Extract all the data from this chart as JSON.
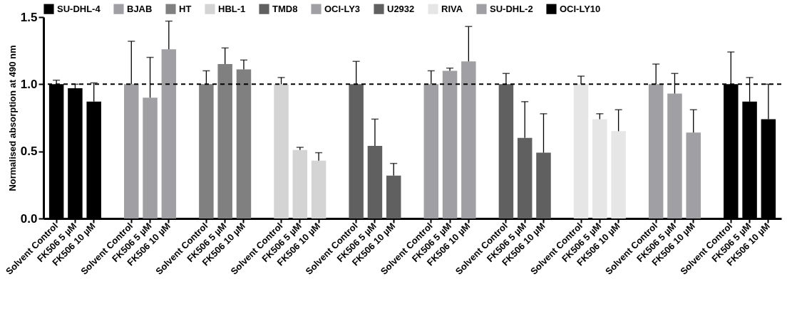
{
  "chart_data": {
    "type": "bar",
    "ylabel": "Normalised absorption at 490 nm",
    "categories": [
      "Solvent Control",
      "FK506 5 µM",
      "FK506 10 µM",
      "Solvent Control",
      "FK506 5 µM",
      "FK506 10 µM",
      "Solvent Control",
      "FK506 5 µM",
      "FK506 10 µM",
      "Solvent Control",
      "FK506 5 µM",
      "FK506 10 µM",
      "Solvent Control",
      "FK506 5 µM",
      "FK506 10 µM",
      "Solvent Control",
      "FK506 5 µM",
      "FK506 10 µM",
      "Solvent Control",
      "FK506 5 µM",
      "FK506 10 µM",
      "Solvent Control",
      "FK506 5 µM",
      "FK506 10 µM",
      "Solvent Control",
      "FK506 5 µM",
      "FK506 10 µM",
      "Solvent Control",
      "FK506 5 µM",
      "FK506 10 µM"
    ],
    "series": [
      {
        "name": "SU-DHL-4",
        "color": "#000000",
        "values": [
          1.0,
          0.97,
          0.87,
          null,
          null,
          null,
          null,
          null,
          null,
          null,
          null,
          null,
          null,
          null,
          null,
          null,
          null,
          null,
          null,
          null,
          null,
          null,
          null,
          null,
          null,
          null,
          null,
          null,
          null,
          null
        ],
        "errors": [
          [
            1.0,
            1.03
          ],
          [
            0.97,
            1.0
          ],
          [
            0.87,
            1.01
          ],
          null,
          null,
          null,
          null,
          null,
          null,
          null,
          null,
          null,
          null,
          null,
          null,
          null,
          null,
          null,
          null,
          null,
          null,
          null,
          null,
          null,
          null,
          null,
          null,
          null,
          null,
          null
        ]
      },
      {
        "name": "BJAB",
        "color": "#a0a0a4",
        "values": [
          null,
          null,
          null,
          1.0,
          0.9,
          1.26,
          null,
          null,
          null,
          null,
          null,
          null,
          null,
          null,
          null,
          null,
          null,
          null,
          null,
          null,
          null,
          null,
          null,
          null,
          null,
          null,
          null,
          null,
          null,
          null
        ],
        "errors": [
          null,
          null,
          null,
          [
            1.0,
            1.32
          ],
          [
            0.9,
            1.2
          ],
          [
            1.26,
            1.47
          ],
          null,
          null,
          null,
          null,
          null,
          null,
          null,
          null,
          null,
          null,
          null,
          null,
          null,
          null,
          null,
          null,
          null,
          null,
          null,
          null,
          null,
          null,
          null,
          null
        ]
      },
      {
        "name": "HT",
        "color": "#808080",
        "values": [
          null,
          null,
          null,
          null,
          null,
          null,
          1.0,
          1.15,
          1.11,
          null,
          null,
          null,
          null,
          null,
          null,
          null,
          null,
          null,
          null,
          null,
          null,
          null,
          null,
          null,
          null,
          null,
          null,
          null,
          null,
          null
        ],
        "errors": [
          null,
          null,
          null,
          null,
          null,
          null,
          [
            1.0,
            1.1
          ],
          [
            1.15,
            1.27
          ],
          [
            1.11,
            1.18
          ],
          null,
          null,
          null,
          null,
          null,
          null,
          null,
          null,
          null,
          null,
          null,
          null,
          null,
          null,
          null,
          null,
          null,
          null,
          null,
          null,
          null
        ]
      },
      {
        "name": "HBL-1",
        "color": "#d4d4d4",
        "values": [
          null,
          null,
          null,
          null,
          null,
          null,
          null,
          null,
          null,
          1.0,
          0.51,
          0.43,
          null,
          null,
          null,
          null,
          null,
          null,
          null,
          null,
          null,
          null,
          null,
          null,
          null,
          null,
          null,
          null,
          null,
          null
        ],
        "errors": [
          null,
          null,
          null,
          null,
          null,
          null,
          null,
          null,
          null,
          [
            1.0,
            1.05
          ],
          [
            0.51,
            0.53
          ],
          [
            0.43,
            0.49
          ],
          null,
          null,
          null,
          null,
          null,
          null,
          null,
          null,
          null,
          null,
          null,
          null,
          null,
          null,
          null,
          null,
          null,
          null
        ]
      },
      {
        "name": "TMD8",
        "color": "#606060",
        "values": [
          null,
          null,
          null,
          null,
          null,
          null,
          null,
          null,
          null,
          null,
          null,
          null,
          1.0,
          0.54,
          0.32,
          null,
          null,
          null,
          null,
          null,
          null,
          null,
          null,
          null,
          null,
          null,
          null,
          null,
          null,
          null
        ],
        "errors": [
          null,
          null,
          null,
          null,
          null,
          null,
          null,
          null,
          null,
          null,
          null,
          null,
          [
            1.0,
            1.17
          ],
          [
            0.54,
            0.74
          ],
          [
            0.32,
            0.41
          ],
          null,
          null,
          null,
          null,
          null,
          null,
          null,
          null,
          null,
          null,
          null,
          null,
          null,
          null,
          null
        ]
      },
      {
        "name": "OCI-LY3",
        "color": "#a0a0a4",
        "values": [
          null,
          null,
          null,
          null,
          null,
          null,
          null,
          null,
          null,
          null,
          null,
          null,
          null,
          null,
          null,
          1.0,
          1.1,
          1.17,
          null,
          null,
          null,
          null,
          null,
          null,
          null,
          null,
          null,
          null,
          null,
          null
        ],
        "errors": [
          null,
          null,
          null,
          null,
          null,
          null,
          null,
          null,
          null,
          null,
          null,
          null,
          null,
          null,
          null,
          [
            1.0,
            1.1
          ],
          [
            1.1,
            1.12
          ],
          [
            1.17,
            1.43
          ],
          null,
          null,
          null,
          null,
          null,
          null,
          null,
          null,
          null,
          null,
          null,
          null
        ]
      },
      {
        "name": "U2932",
        "color": "#606060",
        "values": [
          null,
          null,
          null,
          null,
          null,
          null,
          null,
          null,
          null,
          null,
          null,
          null,
          null,
          null,
          null,
          null,
          null,
          null,
          1.0,
          0.6,
          0.49,
          null,
          null,
          null,
          null,
          null,
          null,
          null,
          null,
          null
        ],
        "errors": [
          null,
          null,
          null,
          null,
          null,
          null,
          null,
          null,
          null,
          null,
          null,
          null,
          null,
          null,
          null,
          null,
          null,
          null,
          [
            1.0,
            1.08
          ],
          [
            0.6,
            0.87
          ],
          [
            0.49,
            0.78
          ],
          null,
          null,
          null,
          null,
          null,
          null,
          null,
          null,
          null
        ]
      },
      {
        "name": "RIVA",
        "color": "#e6e6e6",
        "values": [
          null,
          null,
          null,
          null,
          null,
          null,
          null,
          null,
          null,
          null,
          null,
          null,
          null,
          null,
          null,
          null,
          null,
          null,
          null,
          null,
          null,
          1.0,
          0.74,
          0.65,
          null,
          null,
          null,
          null,
          null,
          null
        ],
        "errors": [
          null,
          null,
          null,
          null,
          null,
          null,
          null,
          null,
          null,
          null,
          null,
          null,
          null,
          null,
          null,
          null,
          null,
          null,
          null,
          null,
          null,
          [
            1.0,
            1.06
          ],
          [
            0.74,
            0.78
          ],
          [
            0.65,
            0.81
          ],
          null,
          null,
          null,
          null,
          null,
          null
        ]
      },
      {
        "name": "SU-DHL-2",
        "color": "#a0a0a4",
        "values": [
          null,
          null,
          null,
          null,
          null,
          null,
          null,
          null,
          null,
          null,
          null,
          null,
          null,
          null,
          null,
          null,
          null,
          null,
          null,
          null,
          null,
          null,
          null,
          null,
          1.0,
          0.93,
          0.64,
          null,
          null,
          null
        ],
        "errors": [
          null,
          null,
          null,
          null,
          null,
          null,
          null,
          null,
          null,
          null,
          null,
          null,
          null,
          null,
          null,
          null,
          null,
          null,
          null,
          null,
          null,
          null,
          null,
          null,
          [
            1.0,
            1.15
          ],
          [
            0.93,
            1.08
          ],
          [
            0.64,
            0.81
          ],
          null,
          null,
          null
        ]
      },
      {
        "name": "OCI-LY10",
        "color": "#000000",
        "values": [
          null,
          null,
          null,
          null,
          null,
          null,
          null,
          null,
          null,
          null,
          null,
          null,
          null,
          null,
          null,
          null,
          null,
          null,
          null,
          null,
          null,
          null,
          null,
          null,
          null,
          null,
          null,
          1.0,
          0.87,
          0.74
        ],
        "errors": [
          null,
          null,
          null,
          null,
          null,
          null,
          null,
          null,
          null,
          null,
          null,
          null,
          null,
          null,
          null,
          null,
          null,
          null,
          null,
          null,
          null,
          null,
          null,
          null,
          null,
          null,
          null,
          [
            1.0,
            1.24
          ],
          [
            0.87,
            1.05
          ],
          [
            0.74,
            1.0
          ]
        ]
      }
    ],
    "ylim": [
      0,
      1.5
    ],
    "yticks": [
      {
        "value": 0,
        "label": "0.0"
      },
      {
        "value": 0.5,
        "label": "0.5"
      },
      {
        "value": 1,
        "label": "1.0"
      },
      {
        "value": 1.5,
        "label": "1.5"
      }
    ],
    "ref_lines": [
      {
        "axis": "y",
        "value": 1,
        "line_style": "dashed",
        "color": "#000000"
      }
    ],
    "legend": "top",
    "grid": false
  }
}
